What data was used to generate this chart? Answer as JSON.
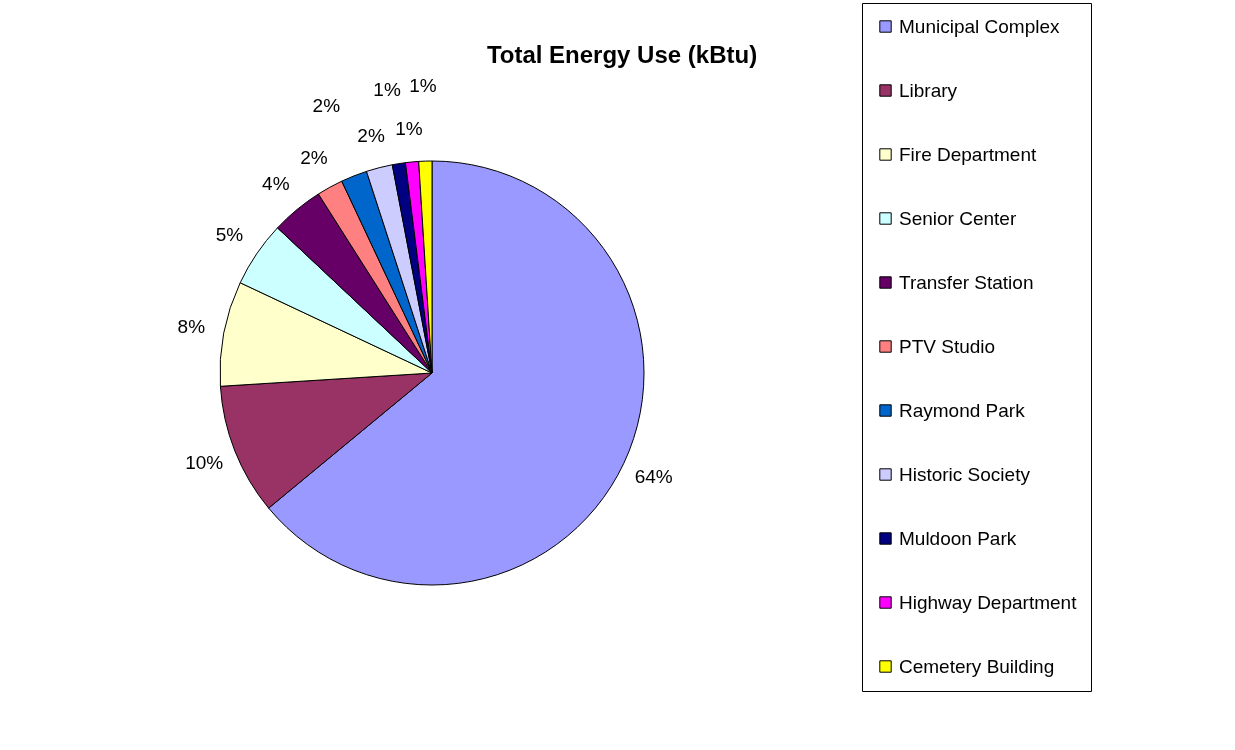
{
  "chart_data": {
    "type": "pie",
    "title": "Total Energy Use (kBtu)",
    "categories": [
      "Municipal Complex",
      "Library",
      "Fire Department",
      "Senior Center",
      "Transfer Station",
      "PTV Studio",
      "Raymond Park",
      "Historic Society",
      "Muldoon Park",
      "Highway Department",
      "Cemetery Building"
    ],
    "values": [
      64,
      10,
      8,
      5,
      4,
      2,
      2,
      2,
      1,
      1,
      1
    ],
    "value_labels": [
      "64%",
      "10%",
      "8%",
      "5%",
      "4%",
      "2%",
      "2%",
      "2%",
      "1%",
      "1%",
      "1%"
    ],
    "colors": [
      "#9999ff",
      "#993366",
      "#ffffcc",
      "#ccffff",
      "#660066",
      "#ff8080",
      "#0066cc",
      "#ccccff",
      "#000080",
      "#ff00ff",
      "#ffff00"
    ],
    "legend": "right"
  }
}
